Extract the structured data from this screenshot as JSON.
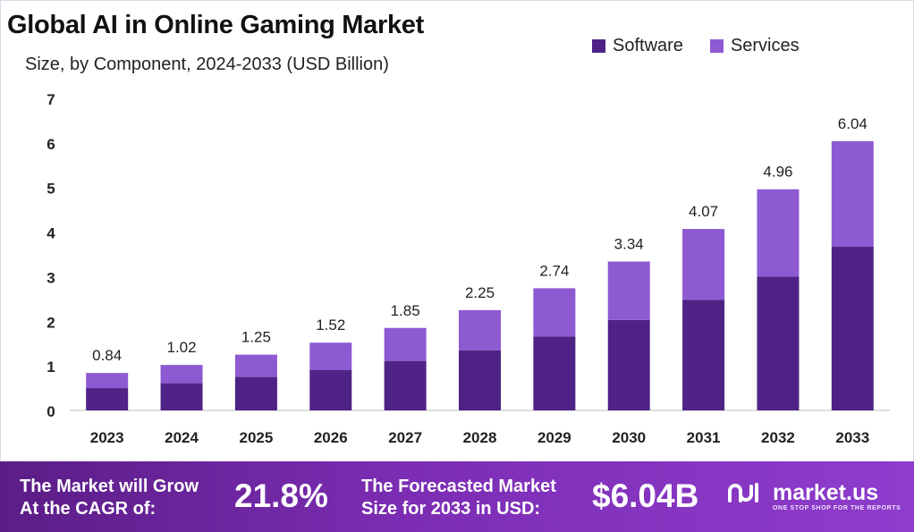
{
  "colors": {
    "software": "#4e2385",
    "services": "#8d5ad2",
    "footer_start": "#5b1d86",
    "footer_end": "#8e3ccd"
  },
  "chart_data": {
    "type": "bar",
    "stacked": true,
    "title": "Global AI in Online Gaming Market",
    "subtitle": "Size, by Component, 2024-2033 (USD Billion)",
    "categories": [
      "2023",
      "2024",
      "2025",
      "2026",
      "2027",
      "2028",
      "2029",
      "2030",
      "2031",
      "2032",
      "2033"
    ],
    "totals": [
      0.84,
      1.02,
      1.25,
      1.52,
      1.85,
      2.25,
      2.74,
      3.34,
      4.07,
      4.96,
      6.04
    ],
    "total_labels": [
      "0.84",
      "1.02",
      "1.25",
      "1.52",
      "1.85",
      "2.25",
      "2.74",
      "3.34",
      "4.07",
      "4.96",
      "6.04"
    ],
    "series": [
      {
        "name": "Software",
        "values": [
          0.5,
          0.61,
          0.75,
          0.91,
          1.11,
          1.35,
          1.66,
          2.03,
          2.48,
          3.0,
          3.67
        ]
      },
      {
        "name": "Services",
        "values": [
          0.34,
          0.41,
          0.5,
          0.61,
          0.74,
          0.9,
          1.08,
          1.31,
          1.59,
          1.96,
          2.37
        ]
      }
    ],
    "ylim": [
      0,
      7
    ],
    "yticks": [
      "0",
      "1",
      "2",
      "3",
      "4",
      "5",
      "6",
      "7"
    ],
    "xlabel": "",
    "ylabel": "",
    "grid": false,
    "legend_position": "top-right"
  },
  "footer": {
    "cagr_text_line1": "The Market will Grow",
    "cagr_text_line2": "At the CAGR of:",
    "cagr_value": "21.8%",
    "forecast_text_line1": "The Forecasted Market",
    "forecast_text_line2": "Size for 2033 in USD:",
    "forecast_value": "$6.04B",
    "brand_name": "market.us",
    "brand_tagline": "ONE STOP SHOP FOR THE REPORTS"
  }
}
